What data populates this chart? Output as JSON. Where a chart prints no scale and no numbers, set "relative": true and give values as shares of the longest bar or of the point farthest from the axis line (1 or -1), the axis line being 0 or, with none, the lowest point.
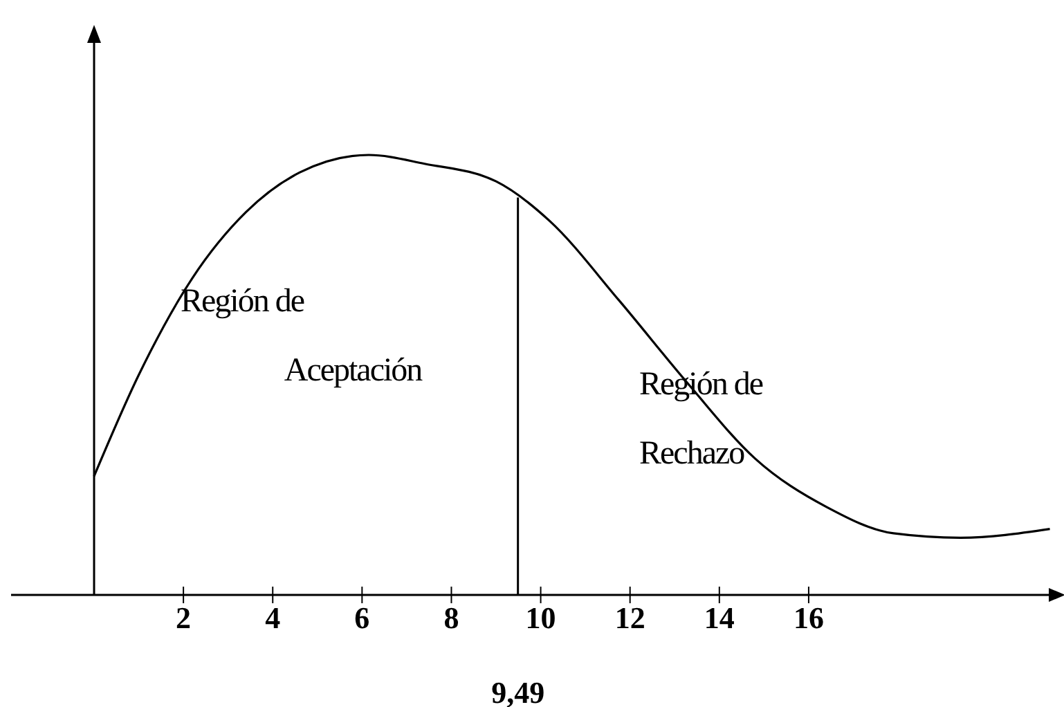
{
  "chart_data": {
    "type": "line",
    "relative": true,
    "x": [
      0,
      1,
      2.2,
      3.4,
      4.6,
      6.15,
      7.4,
      9,
      10.2,
      11.75,
      13.3,
      14.8,
      16.4,
      17.9,
      19.4,
      21.4
    ],
    "series": [
      {
        "color": "#000000",
        "values": [
          0.27,
          0.5,
          0.72,
          0.87,
          0.96,
          1,
          0.98,
          0.94,
          0.85,
          0.67,
          0.48,
          0.31,
          0.2,
          0.14,
          0.13,
          0.15
        ]
      }
    ],
    "xlim": [
      0,
      21.5
    ],
    "xticks": [
      2,
      4,
      6,
      8,
      10,
      12,
      14,
      16
    ],
    "ref_lines": [
      {
        "axis": "x",
        "value": 9.49,
        "label": "9,49",
        "color": "#000000"
      }
    ],
    "annotations": [
      "Región de\nAceptación",
      "Región de\nRechazo"
    ],
    "grid": false,
    "marker": "none",
    "line_style": "solid"
  }
}
